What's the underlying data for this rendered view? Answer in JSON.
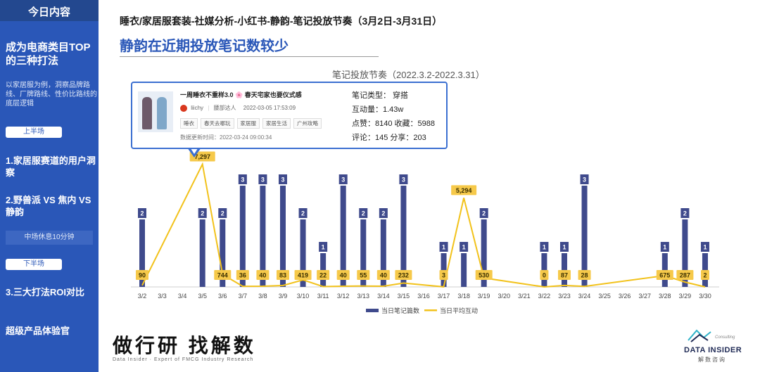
{
  "sidebar": {
    "header": "今日内容",
    "headline": "成为电商类目TOP的三种打法",
    "description": "以家居服为例，洞察品牌路线、厂牌路线、性价比路线的底层逻辑",
    "first_half": "上半场",
    "item1": "1.家居服赛道的用户洞察",
    "item2": "2.野兽派 VS 焦内 VS 静韵",
    "break": "中场休息10分钟",
    "second_half": "下半场",
    "item3": "3.三大打法ROI对比",
    "item4": "超级产品体验官"
  },
  "header": {
    "breadcrumb": "睡衣/家居服套装-社媒分析-小红书-静韵-笔记投放节奏（3月2日-3月31日）",
    "title": "静韵在近期投放笔记数较少"
  },
  "card": {
    "post_title": "一周睡衣不重样3.0 🌸 春天宅家也要仪式感",
    "author": "liichy",
    "author_tag": "腰部达人",
    "post_time": "2022-03-05 17:53:09",
    "tags": [
      "睡衣",
      "春天去哪玩",
      "家居服",
      "家居生活",
      "广州攻略"
    ],
    "update_time": "数据更新时间：2022-03-24 09:00:34",
    "type": "笔记类型：  穿搭",
    "interaction": "互动量：1.43w",
    "likes_saves": "点赞：8140 收藏：5988",
    "comments_shares": "评论：145 分享：203"
  },
  "brand": {
    "cn_logo": "做行研 找解数",
    "cn_sub": "Data Insider · Expert of FMCG Industry Research",
    "di_name": "DATA INSIDER",
    "di_cn": "解数咨询",
    "di_consulting": "Consulting"
  },
  "chart_data": {
    "type": "bar+line",
    "title": "笔记投放节奏（2022.3.2-2022.3.31）",
    "categories": [
      "3/2",
      "3/3",
      "3/4",
      "3/5",
      "3/6",
      "3/7",
      "3/8",
      "3/9",
      "3/10",
      "3/11",
      "3/12",
      "3/13",
      "3/14",
      "3/15",
      "3/16",
      "3/17",
      "3/18",
      "3/19",
      "3/20",
      "3/21",
      "3/22",
      "3/23",
      "3/24",
      "3/25",
      "3/26",
      "3/27",
      "3/28",
      "3/29",
      "3/30"
    ],
    "series": [
      {
        "name": "当日笔记篇数",
        "type": "bar",
        "color": "#3f4a8c",
        "values": [
          2,
          0,
          0,
          2,
          2,
          3,
          3,
          3,
          2,
          1,
          3,
          2,
          2,
          3,
          0,
          1,
          1,
          2,
          0,
          0,
          1,
          1,
          3,
          0,
          0,
          0,
          1,
          2,
          1
        ]
      },
      {
        "name": "当日平均互动",
        "type": "line",
        "color": "#f2c21b",
        "values": [
          90,
          null,
          null,
          7297,
          744,
          36,
          40,
          83,
          419,
          22,
          40,
          55,
          40,
          232,
          null,
          3,
          5294,
          530,
          null,
          null,
          0,
          87,
          28,
          null,
          null,
          null,
          675,
          287,
          2
        ]
      }
    ],
    "bar_ylim": [
      0,
      3.6
    ],
    "line_ylim": [
      0,
      7800
    ],
    "legend": "bottom-right"
  }
}
